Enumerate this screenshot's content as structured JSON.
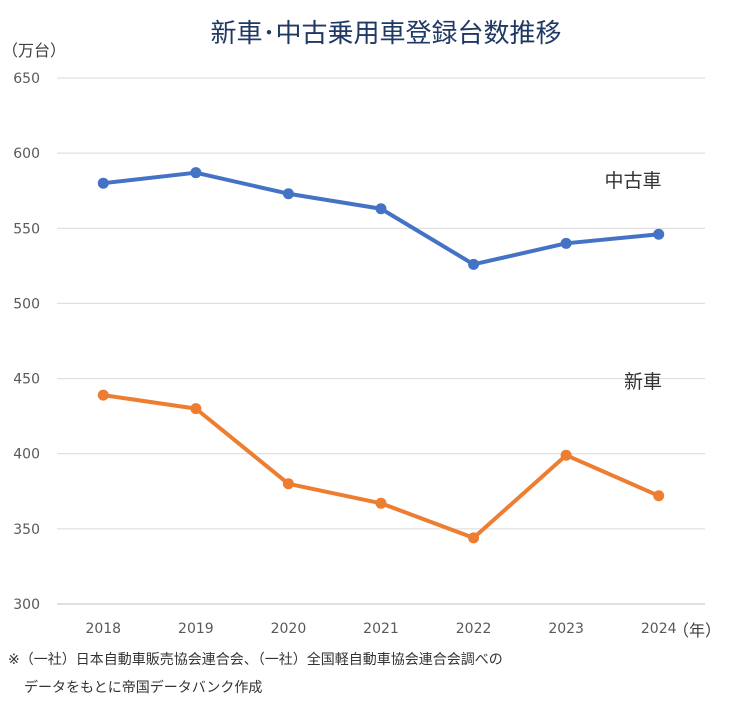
{
  "chart_data": {
    "type": "line",
    "title": "新車･中古乗用車登録台数推移",
    "ylabel": "（万台）",
    "xlabel": "（年）",
    "categories": [
      "2018",
      "2019",
      "2020",
      "2021",
      "2022",
      "2023",
      "2024"
    ],
    "ylim": [
      300,
      650
    ],
    "yticks": [
      300,
      350,
      400,
      450,
      500,
      550,
      600,
      650
    ],
    "grid": true,
    "series": [
      {
        "name": "中古車",
        "color": "#4472c4",
        "values": [
          580,
          587,
          573,
          563,
          526,
          540,
          546
        ]
      },
      {
        "name": "新車",
        "color": "#ed7d31",
        "values": [
          439,
          430,
          380,
          367,
          344,
          399,
          372
        ]
      }
    ]
  },
  "footnote": {
    "line1": "※（一社）日本自動車販売協会連合会、（一社）全国軽自動車協会連合会調べの",
    "line2": "データをもとに帝国データバンク作成"
  }
}
